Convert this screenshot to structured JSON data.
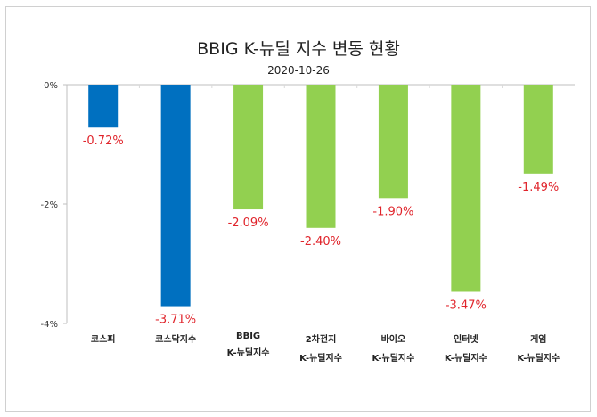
{
  "chart_data": {
    "type": "bar",
    "title": "BBIG K-뉴딜 지수 변동 현황",
    "subtitle": "2020-10-26",
    "categories": [
      [
        "코스피"
      ],
      [
        "코스닥지수"
      ],
      [
        "BBIG",
        "K-뉴딜지수"
      ],
      [
        "2차전지",
        "K-뉴딜지수"
      ],
      [
        "바이오",
        "K-뉴딜지수"
      ],
      [
        "인터넷",
        "K-뉴딜지수"
      ],
      [
        "게임",
        "K-뉴딜지수"
      ]
    ],
    "values": [
      -0.72,
      -3.71,
      -2.09,
      -2.4,
      -1.9,
      -3.47,
      -1.49
    ],
    "data_labels": [
      "-0.72%",
      "-3.71%",
      "-2.09%",
      "-2.40%",
      "-1.90%",
      "-3.47%",
      "-1.49%"
    ],
    "bar_colors": [
      "#0070C0",
      "#0070C0",
      "#92D050",
      "#92D050",
      "#92D050",
      "#92D050",
      "#92D050"
    ],
    "label_color": "#E0242B",
    "ylim": [
      -4,
      0
    ],
    "yticks": [
      0,
      -2,
      -4
    ],
    "ytick_labels": [
      "0%",
      "-2%",
      "-4%"
    ],
    "xlabel": "",
    "ylabel": "",
    "grid": false,
    "legend": "none"
  }
}
